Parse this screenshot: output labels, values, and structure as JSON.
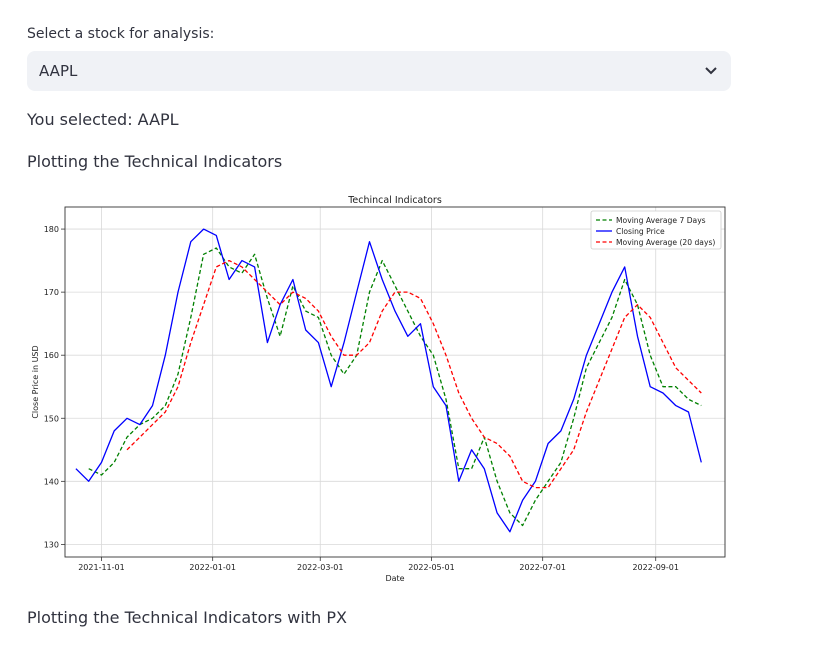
{
  "select": {
    "label": "Select a stock for analysis:",
    "value": "AAPL"
  },
  "selected_text": "You selected: AAPL",
  "section1_heading": "Plotting the Technical Indicators",
  "section2_heading": "Plotting the Technical Indicators with PX",
  "icons": {
    "dropdown": "chevron-down-icon"
  },
  "colors": {
    "closing": "#0000ff",
    "ma7": "#008000",
    "ma20": "#ff0000"
  },
  "chart_data": {
    "type": "line",
    "title": "Techincal Indicators",
    "xlabel": "Date",
    "ylabel": "Close Price in USD",
    "x_ticks": [
      "2021-11-01",
      "2022-01-01",
      "2022-03-01",
      "2022-05-01",
      "2022-07-01",
      "2022-09-01"
    ],
    "y_ticks": [
      130,
      140,
      150,
      160,
      170,
      180
    ],
    "xlim": [
      "2021-10-12",
      "2022-10-09"
    ],
    "ylim": [
      128,
      183.5
    ],
    "grid": true,
    "legend_position": "top-right",
    "dates": [
      "2021-10-18",
      "2021-10-25",
      "2021-11-01",
      "2021-11-08",
      "2021-11-15",
      "2021-11-22",
      "2021-11-29",
      "2021-12-06",
      "2021-12-13",
      "2021-12-20",
      "2021-12-27",
      "2022-01-03",
      "2022-01-10",
      "2022-01-17",
      "2022-01-24",
      "2022-01-31",
      "2022-02-07",
      "2022-02-14",
      "2022-02-21",
      "2022-02-28",
      "2022-03-07",
      "2022-03-14",
      "2022-03-21",
      "2022-03-28",
      "2022-04-04",
      "2022-04-11",
      "2022-04-18",
      "2022-04-25",
      "2022-05-02",
      "2022-05-09",
      "2022-05-16",
      "2022-05-23",
      "2022-05-30",
      "2022-06-06",
      "2022-06-13",
      "2022-06-20",
      "2022-06-27",
      "2022-07-04",
      "2022-07-11",
      "2022-07-18",
      "2022-07-25",
      "2022-08-01",
      "2022-08-08",
      "2022-08-15",
      "2022-08-22",
      "2022-08-29",
      "2022-09-05",
      "2022-09-12",
      "2022-09-19",
      "2022-09-26"
    ],
    "series": [
      {
        "name": "Moving Average 7 Days",
        "style": "dashed",
        "color": "#008000",
        "values": [
          null,
          142,
          141,
          143,
          147,
          149,
          150,
          152,
          157,
          166,
          176,
          177,
          174,
          173,
          176,
          169,
          163,
          171,
          167,
          166,
          160,
          157,
          160,
          170,
          175,
          171,
          167,
          163,
          160,
          153,
          142,
          142,
          147,
          140,
          135,
          133,
          137,
          140,
          143,
          150,
          158,
          162,
          166,
          172,
          168,
          160,
          155,
          155,
          153,
          152
        ]
      },
      {
        "name": "Closing Price",
        "style": "solid",
        "color": "#0000ff",
        "values": [
          142,
          140,
          143,
          148,
          150,
          149,
          152,
          160,
          170,
          178,
          180,
          179,
          172,
          175,
          174,
          162,
          168,
          172,
          164,
          162,
          155,
          162,
          170,
          178,
          172,
          167,
          163,
          165,
          155,
          152,
          140,
          145,
          142,
          135,
          132,
          137,
          140,
          146,
          148,
          153,
          160,
          165,
          170,
          174,
          163,
          155,
          154,
          152,
          151,
          143
        ]
      },
      {
        "name": "Moving Average (20 days)",
        "style": "dashed",
        "color": "#ff0000",
        "values": [
          null,
          null,
          null,
          null,
          145,
          147,
          149,
          151,
          155,
          162,
          168,
          174,
          175,
          174,
          172,
          170,
          168,
          170,
          169,
          167,
          163,
          160,
          160,
          162,
          167,
          170,
          170,
          169,
          165,
          160,
          154,
          150,
          147,
          146,
          144,
          140,
          139,
          139,
          142,
          145,
          151,
          156,
          161,
          166,
          168,
          166,
          162,
          158,
          156,
          154
        ]
      }
    ]
  }
}
